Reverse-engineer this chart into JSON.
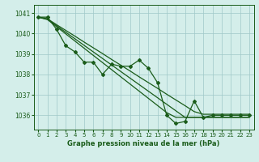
{
  "bg_color": "#d4eeea",
  "grid_color": "#a0c8c8",
  "line_color_main": "#1a5c1a",
  "xlabel": "Graphe pression niveau de la mer (hPa)",
  "ylim": [
    1035.3,
    1041.4
  ],
  "xlim": [
    -0.5,
    23.5
  ],
  "yticks": [
    1036,
    1037,
    1038,
    1039,
    1040,
    1041
  ],
  "xticks": [
    0,
    1,
    2,
    3,
    4,
    5,
    6,
    7,
    8,
    9,
    10,
    11,
    12,
    13,
    14,
    15,
    16,
    17,
    18,
    19,
    20,
    21,
    22,
    23
  ],
  "jagged": [
    1040.8,
    1040.8,
    1040.2,
    1039.4,
    1039.1,
    1038.6,
    1038.6,
    1038.0,
    1038.5,
    1038.4,
    1038.4,
    1038.7,
    1038.3,
    1037.6,
    1036.0,
    1035.6,
    1035.7,
    1036.7,
    1035.9,
    1036.0,
    1036.0,
    1036.0,
    1036.0,
    1036.0
  ],
  "smooth1": [
    1040.8,
    1040.72,
    1040.43,
    1040.15,
    1039.87,
    1039.58,
    1039.3,
    1039.02,
    1038.73,
    1038.45,
    1038.17,
    1037.88,
    1037.6,
    1037.32,
    1037.03,
    1036.75,
    1036.47,
    1036.18,
    1036.05,
    1036.05,
    1036.05,
    1036.05,
    1036.05,
    1036.05
  ],
  "smooth2": [
    1040.8,
    1040.7,
    1040.38,
    1040.06,
    1039.74,
    1039.42,
    1039.1,
    1038.78,
    1038.46,
    1038.14,
    1037.82,
    1037.5,
    1037.18,
    1036.86,
    1036.54,
    1036.22,
    1035.9,
    1035.9,
    1035.9,
    1035.9,
    1035.9,
    1035.9,
    1035.9,
    1035.9
  ],
  "smooth3": [
    1040.8,
    1040.68,
    1040.33,
    1039.98,
    1039.63,
    1039.28,
    1038.93,
    1038.58,
    1038.23,
    1037.88,
    1037.53,
    1037.18,
    1036.83,
    1036.48,
    1036.13,
    1035.9,
    1035.9,
    1035.9,
    1035.9,
    1035.9,
    1035.9,
    1035.9,
    1035.9,
    1035.9
  ]
}
